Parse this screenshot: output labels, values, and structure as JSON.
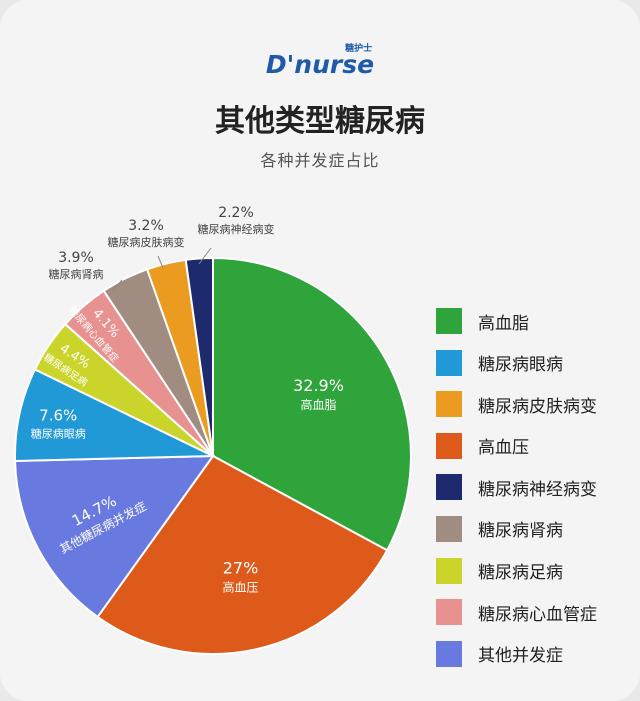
{
  "logo": {
    "text": "D'nurse",
    "sup": "糖护士"
  },
  "title": "其他类型糖尿病",
  "subtitle": "各种并发症占比",
  "chart_data": {
    "type": "pie",
    "slices": [
      {
        "name": "高血脂",
        "value": 32.9,
        "label": "32.9%",
        "color": "#2ea43b"
      },
      {
        "name": "高血压",
        "value": 27,
        "label": "27%",
        "color": "#dd5a1b"
      },
      {
        "name": "其他糖尿病并发症",
        "value": 14.7,
        "label": "14.7%",
        "color": "#6879e0"
      },
      {
        "name": "糖尿病眼病",
        "value": 7.6,
        "label": "7.6%",
        "color": "#2199d6"
      },
      {
        "name": "糖尿病足病",
        "value": 4.4,
        "label": "4.4%",
        "color": "#cbd42a"
      },
      {
        "name": "糖尿病心血管症",
        "value": 4.1,
        "label": "4.1%",
        "color": "#e89191"
      },
      {
        "name": "糖尿病肾病",
        "value": 3.9,
        "label": "3.9%",
        "color": "#a08c80"
      },
      {
        "name": "糖尿病皮肤病变",
        "value": 3.2,
        "label": "3.2%",
        "color": "#ec9b21"
      },
      {
        "name": "糖尿病神经病变",
        "value": 2.2,
        "label": "2.2%",
        "color": "#1d2a6e"
      }
    ],
    "legend": [
      {
        "label": "高血脂",
        "color": "#2ea43b"
      },
      {
        "label": "糖尿病眼病",
        "color": "#2199d6"
      },
      {
        "label": "糖尿病皮肤病变",
        "color": "#ec9b21"
      },
      {
        "label": "高血压",
        "color": "#dd5a1b"
      },
      {
        "label": "糖尿病神经病变",
        "color": "#1d2a6e"
      },
      {
        "label": "糖尿病肾病",
        "color": "#a08c80"
      },
      {
        "label": "糖尿病足病",
        "color": "#cbd42a"
      },
      {
        "label": "糖尿病心血管症",
        "color": "#e89191"
      },
      {
        "label": "其他并发症",
        "color": "#6879e0"
      }
    ],
    "legend_position": "right"
  }
}
